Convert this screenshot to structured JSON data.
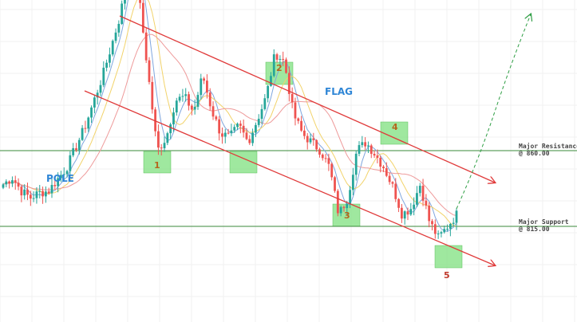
{
  "chart_data": {
    "type": "candlestick",
    "grid": true,
    "colors": {
      "up": "#26a69a",
      "down": "#ef5350",
      "ma_fast": "#7fa6de",
      "ma_mid": "#f2d36b",
      "ma_slow": "#ee9a9a",
      "channel": "#e03a3a",
      "levels": "#3a8a3a",
      "target": "#2e9e44",
      "highlight": "#7fe07f"
    },
    "pattern_labels": {
      "pole": "POLE",
      "flag": "FLAG"
    },
    "levels": [
      {
        "name": "Major Resistance",
        "value_text": "@ 860.00",
        "y": 860
      },
      {
        "name": "Major Support",
        "value_text": "@ 815.00",
        "y": 815
      }
    ],
    "touch_points": [
      "1",
      "2",
      "3",
      "4",
      "5"
    ],
    "ylim": [
      768,
      990
    ]
  }
}
